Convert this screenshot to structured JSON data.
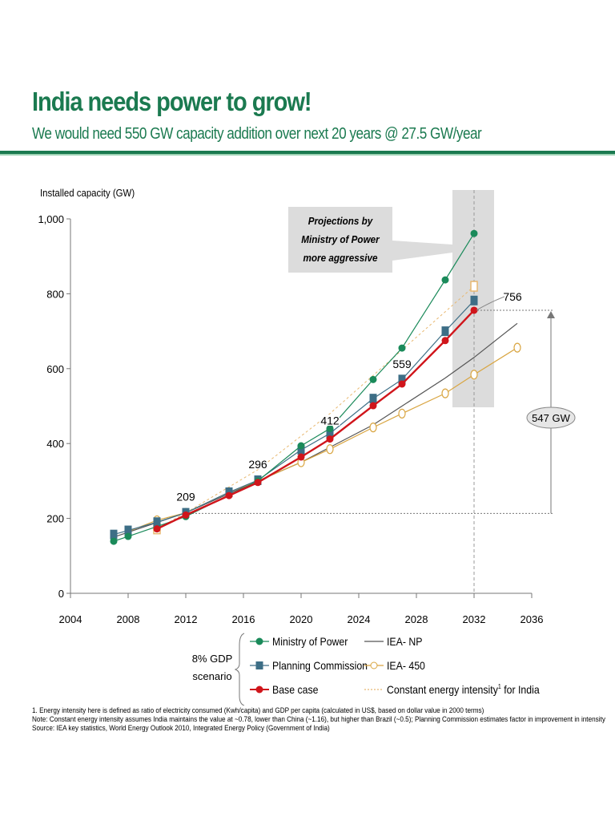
{
  "header": {
    "title": "India needs power to grow!",
    "subtitle": "We would need 550 GW capacity addition over next 20 years @ 27.5 GW/year"
  },
  "colors": {
    "brand": "#1b7a50",
    "ministry": "#1a8a5a",
    "planning": "#3d6e86",
    "base": "#d0151b",
    "iea_np": "#555555",
    "iea_450": "#d9a541",
    "constant": "#e8b870"
  },
  "chart_data": {
    "type": "line",
    "title": "",
    "ylabel": "Installed capacity (GW)",
    "xlabel": "",
    "xlim": [
      2004,
      2036
    ],
    "ylim": [
      0,
      1000
    ],
    "xticks": [
      "2004",
      "2008",
      "2012",
      "2016",
      "2020",
      "2024",
      "2028",
      "2032",
      "2036"
    ],
    "yticks": [
      "0",
      "200",
      "400",
      "600",
      "800",
      "1,000"
    ],
    "grid": false,
    "legend_position": "bottom",
    "series": [
      {
        "name": "Ministry of Power",
        "marker": "circle-filled",
        "x": [
          2007,
          2008,
          2012,
          2017,
          2020,
          2022,
          2025,
          2027,
          2030,
          2032
        ],
        "values": [
          139,
          152,
          205,
          300,
          394,
          440,
          571,
          655,
          837,
          961
        ]
      },
      {
        "name": "Planning Commission",
        "marker": "square-filled",
        "x": [
          2007,
          2008,
          2010,
          2012,
          2015,
          2017,
          2020,
          2022,
          2025,
          2027,
          2030,
          2032
        ],
        "values": [
          157,
          168,
          190,
          215,
          270,
          302,
          383,
          427,
          520,
          571,
          700,
          782
        ]
      },
      {
        "name": "Base case",
        "marker": "circle-filled",
        "x": [
          2010,
          2012,
          2015,
          2017,
          2020,
          2022,
          2025,
          2027,
          2030,
          2032
        ],
        "values": [
          172,
          209,
          261,
          296,
          364,
          412,
          501,
          559,
          675,
          756
        ]
      },
      {
        "name": "IEA- NP",
        "marker": "none",
        "x": [
          2007,
          2012,
          2017,
          2020,
          2022,
          2025,
          2027,
          2030,
          2032,
          2035
        ],
        "values": [
          150,
          215,
          300,
          350,
          390,
          450,
          500,
          575,
          630,
          721
        ]
      },
      {
        "name": "IEA- 450",
        "marker": "circle-open",
        "x": [
          2008,
          2010,
          2012,
          2015,
          2017,
          2020,
          2022,
          2025,
          2027,
          2030,
          2032,
          2035
        ],
        "values": [
          165,
          195,
          215,
          270,
          300,
          350,
          385,
          443,
          480,
          534,
          584,
          656
        ]
      },
      {
        "name": "Constant energy intensity for India",
        "marker": "square-open-ends",
        "x": [
          2010,
          2012,
          2017,
          2022,
          2027,
          2032
        ],
        "values": [
          172,
          215,
          330,
          480,
          650,
          820
        ]
      }
    ],
    "data_labels": [
      {
        "x": 2012,
        "y": 209,
        "text": "209"
      },
      {
        "x": 2017,
        "y": 296,
        "text": "296"
      },
      {
        "x": 2022,
        "y": 412,
        "text": "412"
      },
      {
        "x": 2027,
        "y": 559,
        "text": "559"
      },
      {
        "x": 2032,
        "y": 756,
        "text": "756"
      }
    ],
    "annotations": {
      "callout": [
        "Projections by",
        "Ministry of Power",
        "more aggressive"
      ],
      "difference": "547 GW"
    },
    "legend": {
      "group_label": [
        "8% GDP",
        "scenario"
      ],
      "superscript": "1"
    }
  },
  "footnotes": [
    "1. Energy intensity here is defined as ratio of electricity consumed (Kwh/capita) and GDP per capita (calculated in US$, based on dollar value in 2000 terms)",
    "Note: Constant energy intensity assumes India maintains the value at ~0.78, lower than China (~1.16), but higher than Brazil (~0.5); Planning Commission estimates factor in improvement in intensity",
    "Source: IEA key statistics, World Energy Outlook 2010, Integrated Energy Policy (Government of India)"
  ]
}
